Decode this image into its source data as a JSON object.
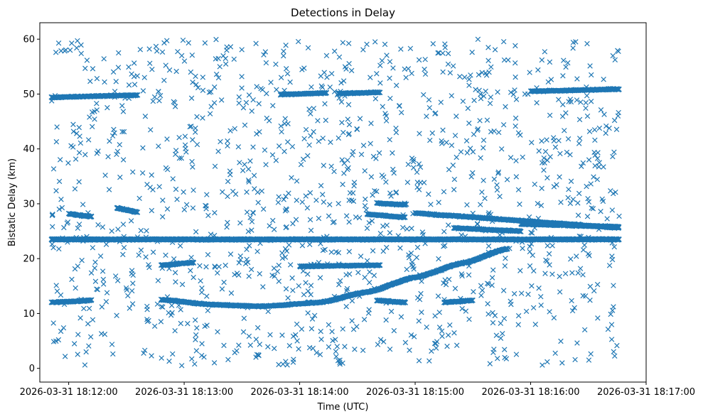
{
  "chart_data": {
    "type": "scatter",
    "title": "Detections in Delay",
    "xlabel": "Time (UTC)",
    "ylabel": "Bistatic Delay (km)",
    "x_is_time": true,
    "xlim": [
      "2026-03-31 18:11:45",
      "2026-03-31 18:17:00"
    ],
    "ylim": [
      -2.5,
      63
    ],
    "x_ticks": [
      "2026-03-31 18:12:00",
      "2026-03-31 18:13:00",
      "2026-03-31 18:14:00",
      "2026-03-31 18:15:00",
      "2026-03-31 18:16:00",
      "2026-03-31 18:17:00"
    ],
    "y_ticks": [
      0,
      10,
      20,
      30,
      40,
      50,
      60
    ],
    "grid": false,
    "legend": "none",
    "marker": "x",
    "color": "#1f77b4",
    "series": [
      {
        "tracks": [
          {
            "t_start": "2026-03-31 18:11:51",
            "t_end": "2026-03-31 18:16:46",
            "shape": "constant",
            "delay_start": 23.5,
            "delay_end": 23.5,
            "density": "continuous"
          },
          {
            "t_start": "2026-03-31 18:11:51",
            "t_end": "2026-03-31 18:12:36",
            "shape": "linear",
            "delay_start": 49.4,
            "delay_end": 49.8
          },
          {
            "t_start": "2026-03-31 18:11:51",
            "t_end": "2026-03-31 18:12:12",
            "shape": "linear",
            "delay_start": 12.0,
            "delay_end": 12.4
          },
          {
            "t_start": "2026-03-31 18:12:48",
            "t_end": "2026-03-31 18:15:48",
            "shape": "smooth",
            "points": [
              {
                "t": "2026-03-31 18:12:48",
                "d": 12.5
              },
              {
                "t": "2026-03-31 18:13:15",
                "d": 11.6
              },
              {
                "t": "2026-03-31 18:13:40",
                "d": 11.3
              },
              {
                "t": "2026-03-31 18:14:10",
                "d": 12.0
              },
              {
                "t": "2026-03-31 18:14:35",
                "d": 13.9
              },
              {
                "t": "2026-03-31 18:15:00",
                "d": 16.6
              },
              {
                "t": "2026-03-31 18:15:25",
                "d": 19.2
              },
              {
                "t": "2026-03-31 18:15:48",
                "d": 21.8
              }
            ]
          },
          {
            "t_start": "2026-03-31 18:13:50",
            "t_end": "2026-03-31 18:14:14",
            "shape": "linear",
            "delay_start": 49.9,
            "delay_end": 50.2
          },
          {
            "t_start": "2026-03-31 18:14:20",
            "t_end": "2026-03-31 18:14:42",
            "shape": "linear",
            "delay_start": 50.1,
            "delay_end": 50.3
          },
          {
            "t_start": "2026-03-31 18:16:00",
            "t_end": "2026-03-31 18:16:46",
            "shape": "linear",
            "delay_start": 50.5,
            "delay_end": 50.9
          },
          {
            "t_start": "2026-03-31 18:14:00",
            "t_end": "2026-03-31 18:14:42",
            "shape": "linear",
            "delay_start": 18.6,
            "delay_end": 18.8
          },
          {
            "t_start": "2026-03-31 18:12:48",
            "t_end": "2026-03-31 18:13:05",
            "shape": "linear",
            "delay_start": 18.8,
            "delay_end": 19.3
          },
          {
            "t_start": "2026-03-31 18:14:35",
            "t_end": "2026-03-31 18:14:55",
            "shape": "linear",
            "delay_start": 28.1,
            "delay_end": 27.5
          },
          {
            "t_start": "2026-03-31 18:14:40",
            "t_end": "2026-03-31 18:14:55",
            "shape": "linear",
            "delay_start": 30.1,
            "delay_end": 29.8
          },
          {
            "t_start": "2026-03-31 18:15:00",
            "t_end": "2026-03-31 18:16:46",
            "shape": "linear",
            "delay_start": 28.3,
            "delay_end": 25.6
          },
          {
            "t_start": "2026-03-31 18:15:20",
            "t_end": "2026-03-31 18:15:55",
            "shape": "linear",
            "delay_start": 25.6,
            "delay_end": 25.0
          },
          {
            "t_start": "2026-03-31 18:15:55",
            "t_end": "2026-03-31 18:16:46",
            "shape": "linear",
            "delay_start": 26.3,
            "delay_end": 25.8
          },
          {
            "t_start": "2026-03-31 18:12:00",
            "t_end": "2026-03-31 18:12:12",
            "shape": "linear",
            "delay_start": 28.2,
            "delay_end": 27.6
          },
          {
            "t_start": "2026-03-31 18:12:25",
            "t_end": "2026-03-31 18:12:36",
            "shape": "linear",
            "delay_start": 29.3,
            "delay_end": 28.4
          },
          {
            "t_start": "2026-03-31 18:15:15",
            "t_end": "2026-03-31 18:15:30",
            "shape": "linear",
            "delay_start": 12.0,
            "delay_end": 12.4
          },
          {
            "t_start": "2026-03-31 18:14:40",
            "t_end": "2026-03-31 18:14:55",
            "shape": "linear",
            "delay_start": 12.4,
            "delay_end": 12.0
          }
        ],
        "clutter": {
          "t_range": [
            "2026-03-31 18:11:51",
            "2026-03-31 18:16:46"
          ],
          "delay_range": [
            0.5,
            60
          ],
          "approx_count": 1300
        }
      }
    ]
  }
}
